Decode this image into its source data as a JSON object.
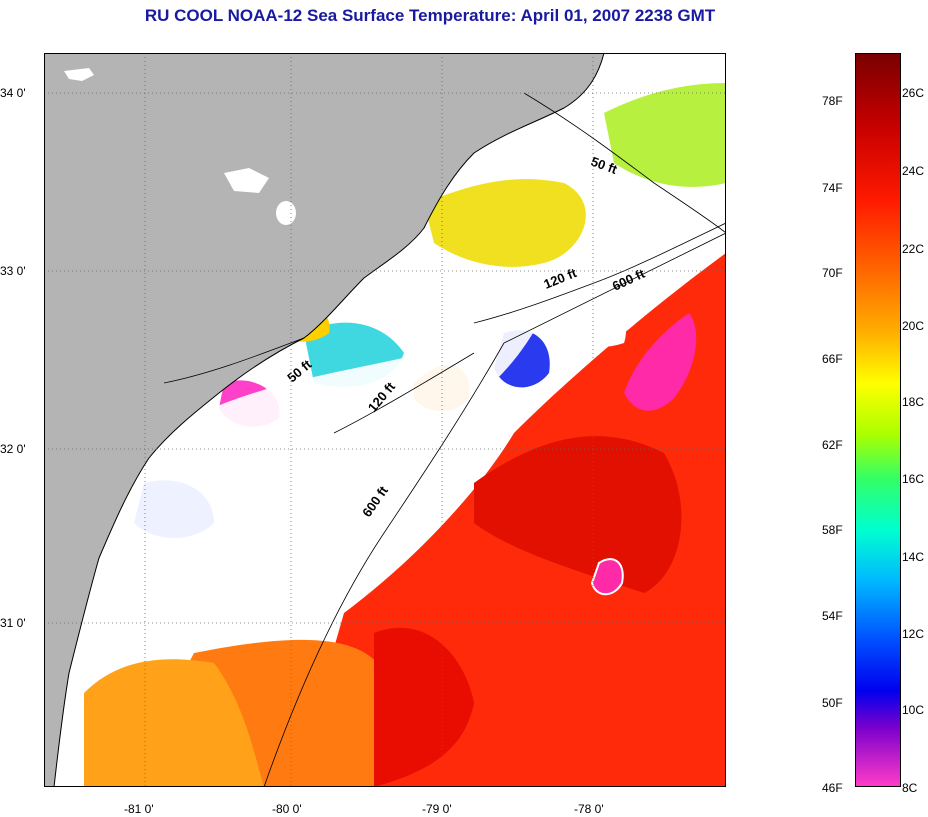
{
  "title": "RU COOL  NOAA-12  Sea Surface Temperature:  April 01, 2007 2238 GMT",
  "map": {
    "lat_labels": [
      "34 0'",
      "33 0'",
      "32 0'",
      "31 0'"
    ],
    "lon_labels": [
      "-81 0'",
      "-80 0'",
      "-79 0'",
      "-78 0'"
    ],
    "isobath_labels": [
      "50 ft",
      "120 ft",
      "600 ft",
      "50 ft",
      "120 ft",
      "600 ft"
    ],
    "land_color": "#b4b4b4",
    "cloud_color": "#ffffff"
  },
  "colorbar": {
    "fahrenheit_labels": [
      "78F",
      "74F",
      "70F",
      "66F",
      "62F",
      "58F",
      "54F",
      "50F",
      "46F"
    ],
    "celsius_labels": [
      "26C",
      "24C",
      "22C",
      "20C",
      "18C",
      "16C",
      "14C",
      "12C",
      "10C",
      "8C"
    ]
  }
}
